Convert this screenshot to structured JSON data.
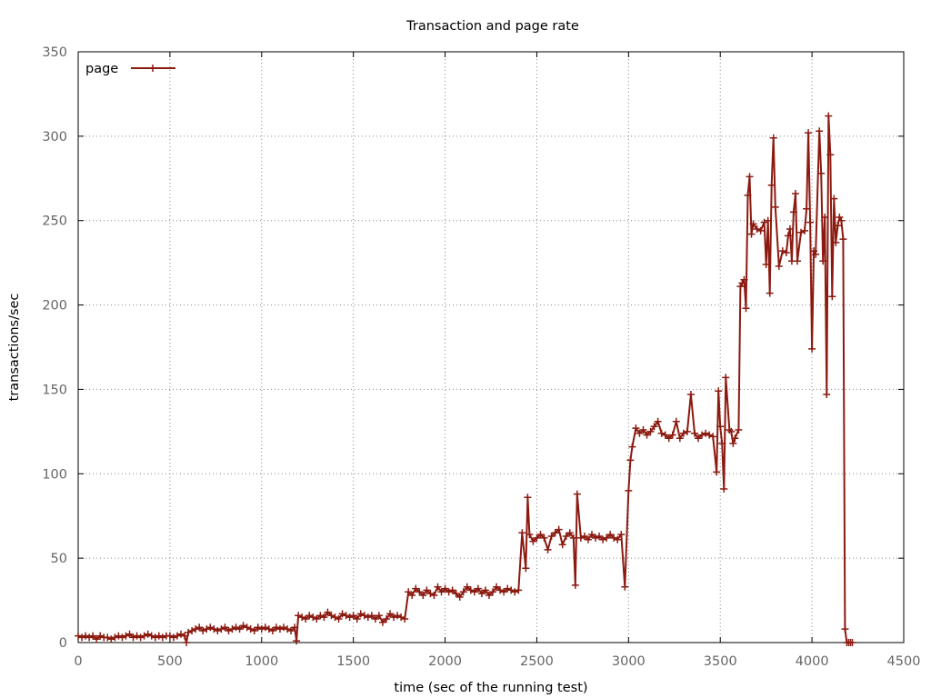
{
  "chart_data": {
    "type": "line",
    "title": "Transaction and page rate",
    "xlabel": "time (sec of the running test)",
    "ylabel": "transactions/sec",
    "xlim": [
      0,
      4500
    ],
    "ylim": [
      0,
      350
    ],
    "xticks": [
      0,
      500,
      1000,
      1500,
      2000,
      2500,
      3000,
      3500,
      4000,
      4500
    ],
    "yticks": [
      0,
      50,
      100,
      150,
      200,
      250,
      300,
      350
    ],
    "grid": true,
    "legend_position": "top-left",
    "color": "#8b1a10",
    "marker": "plus",
    "series": [
      {
        "name": "page",
        "points": [
          [
            0,
            4
          ],
          [
            20,
            3
          ],
          [
            40,
            4
          ],
          [
            60,
            3
          ],
          [
            80,
            4
          ],
          [
            100,
            2
          ],
          [
            120,
            4
          ],
          [
            140,
            3
          ],
          [
            160,
            3
          ],
          [
            180,
            2
          ],
          [
            200,
            3
          ],
          [
            220,
            4
          ],
          [
            240,
            3
          ],
          [
            260,
            4
          ],
          [
            280,
            5
          ],
          [
            300,
            3
          ],
          [
            320,
            4
          ],
          [
            340,
            3
          ],
          [
            360,
            4
          ],
          [
            380,
            5
          ],
          [
            400,
            4
          ],
          [
            420,
            3
          ],
          [
            440,
            4
          ],
          [
            460,
            3
          ],
          [
            480,
            4
          ],
          [
            500,
            4
          ],
          [
            520,
            3
          ],
          [
            540,
            4
          ],
          [
            560,
            5
          ],
          [
            580,
            4
          ],
          [
            590,
            0
          ],
          [
            600,
            6
          ],
          [
            620,
            7
          ],
          [
            640,
            8
          ],
          [
            660,
            9
          ],
          [
            680,
            7
          ],
          [
            700,
            8
          ],
          [
            720,
            9
          ],
          [
            740,
            8
          ],
          [
            760,
            7
          ],
          [
            780,
            8
          ],
          [
            800,
            9
          ],
          [
            820,
            7
          ],
          [
            840,
            8
          ],
          [
            860,
            9
          ],
          [
            880,
            8
          ],
          [
            900,
            10
          ],
          [
            920,
            9
          ],
          [
            940,
            8
          ],
          [
            960,
            7
          ],
          [
            980,
            9
          ],
          [
            1000,
            8
          ],
          [
            1020,
            9
          ],
          [
            1040,
            8
          ],
          [
            1060,
            7
          ],
          [
            1080,
            9
          ],
          [
            1100,
            8
          ],
          [
            1120,
            9
          ],
          [
            1140,
            8
          ],
          [
            1160,
            7
          ],
          [
            1180,
            9
          ],
          [
            1190,
            1
          ],
          [
            1200,
            16
          ],
          [
            1220,
            15
          ],
          [
            1240,
            14
          ],
          [
            1260,
            16
          ],
          [
            1280,
            15
          ],
          [
            1300,
            14
          ],
          [
            1320,
            16
          ],
          [
            1340,
            15
          ],
          [
            1360,
            18
          ],
          [
            1380,
            16
          ],
          [
            1400,
            15
          ],
          [
            1420,
            14
          ],
          [
            1440,
            17
          ],
          [
            1460,
            16
          ],
          [
            1480,
            15
          ],
          [
            1500,
            16
          ],
          [
            1520,
            14
          ],
          [
            1540,
            17
          ],
          [
            1560,
            16
          ],
          [
            1580,
            15
          ],
          [
            1600,
            16
          ],
          [
            1620,
            14
          ],
          [
            1640,
            16
          ],
          [
            1660,
            12
          ],
          [
            1680,
            14
          ],
          [
            1700,
            17
          ],
          [
            1720,
            15
          ],
          [
            1740,
            16
          ],
          [
            1760,
            15
          ],
          [
            1780,
            14
          ],
          [
            1800,
            30
          ],
          [
            1820,
            28
          ],
          [
            1840,
            32
          ],
          [
            1860,
            30
          ],
          [
            1880,
            28
          ],
          [
            1900,
            31
          ],
          [
            1920,
            29
          ],
          [
            1940,
            28
          ],
          [
            1960,
            33
          ],
          [
            1980,
            30
          ],
          [
            2000,
            32
          ],
          [
            2020,
            30
          ],
          [
            2040,
            31
          ],
          [
            2060,
            29
          ],
          [
            2080,
            27
          ],
          [
            2100,
            30
          ],
          [
            2120,
            33
          ],
          [
            2140,
            31
          ],
          [
            2160,
            30
          ],
          [
            2180,
            32
          ],
          [
            2200,
            29
          ],
          [
            2220,
            31
          ],
          [
            2240,
            28
          ],
          [
            2260,
            30
          ],
          [
            2280,
            33
          ],
          [
            2300,
            31
          ],
          [
            2320,
            30
          ],
          [
            2340,
            32
          ],
          [
            2360,
            31
          ],
          [
            2380,
            30
          ],
          [
            2400,
            31
          ],
          [
            2420,
            65
          ],
          [
            2440,
            44
          ],
          [
            2450,
            86
          ],
          [
            2460,
            64
          ],
          [
            2480,
            60
          ],
          [
            2500,
            62
          ],
          [
            2520,
            64
          ],
          [
            2540,
            62
          ],
          [
            2560,
            55
          ],
          [
            2580,
            63
          ],
          [
            2600,
            65
          ],
          [
            2620,
            67
          ],
          [
            2640,
            58
          ],
          [
            2660,
            63
          ],
          [
            2680,
            65
          ],
          [
            2700,
            62
          ],
          [
            2710,
            34
          ],
          [
            2720,
            88
          ],
          [
            2740,
            62
          ],
          [
            2760,
            63
          ],
          [
            2780,
            61
          ],
          [
            2800,
            64
          ],
          [
            2820,
            62
          ],
          [
            2840,
            63
          ],
          [
            2860,
            61
          ],
          [
            2880,
            62
          ],
          [
            2900,
            64
          ],
          [
            2920,
            62
          ],
          [
            2940,
            61
          ],
          [
            2960,
            64
          ],
          [
            2980,
            33
          ],
          [
            3000,
            90
          ],
          [
            3010,
            108
          ],
          [
            3020,
            116
          ],
          [
            3040,
            127
          ],
          [
            3060,
            124
          ],
          [
            3080,
            126
          ],
          [
            3100,
            123
          ],
          [
            3120,
            125
          ],
          [
            3140,
            128
          ],
          [
            3160,
            131
          ],
          [
            3180,
            124
          ],
          [
            3200,
            123
          ],
          [
            3220,
            121
          ],
          [
            3240,
            123
          ],
          [
            3260,
            131
          ],
          [
            3280,
            121
          ],
          [
            3300,
            124
          ],
          [
            3320,
            125
          ],
          [
            3340,
            147
          ],
          [
            3360,
            124
          ],
          [
            3380,
            121
          ],
          [
            3400,
            123
          ],
          [
            3420,
            124
          ],
          [
            3440,
            123
          ],
          [
            3460,
            122
          ],
          [
            3480,
            101
          ],
          [
            3490,
            149
          ],
          [
            3500,
            128
          ],
          [
            3510,
            118
          ],
          [
            3520,
            91
          ],
          [
            3530,
            157
          ],
          [
            3550,
            126
          ],
          [
            3560,
            125
          ],
          [
            3570,
            118
          ],
          [
            3580,
            121
          ],
          [
            3600,
            126
          ],
          [
            3610,
            211
          ],
          [
            3620,
            213
          ],
          [
            3630,
            215
          ],
          [
            3640,
            198
          ],
          [
            3650,
            265
          ],
          [
            3660,
            276
          ],
          [
            3670,
            242
          ],
          [
            3680,
            248
          ],
          [
            3700,
            245
          ],
          [
            3720,
            244
          ],
          [
            3740,
            249
          ],
          [
            3750,
            224
          ],
          [
            3760,
            250
          ],
          [
            3770,
            207
          ],
          [
            3780,
            271
          ],
          [
            3790,
            299
          ],
          [
            3800,
            258
          ],
          [
            3820,
            223
          ],
          [
            3840,
            232
          ],
          [
            3860,
            231
          ],
          [
            3870,
            241
          ],
          [
            3880,
            245
          ],
          [
            3890,
            226
          ],
          [
            3900,
            255
          ],
          [
            3910,
            266
          ],
          [
            3920,
            226
          ],
          [
            3940,
            243
          ],
          [
            3960,
            244
          ],
          [
            3970,
            257
          ],
          [
            3980,
            302
          ],
          [
            3990,
            249
          ],
          [
            4000,
            174
          ],
          [
            4010,
            232
          ],
          [
            4020,
            230
          ],
          [
            4040,
            303
          ],
          [
            4050,
            278
          ],
          [
            4060,
            226
          ],
          [
            4070,
            252
          ],
          [
            4080,
            147
          ],
          [
            4090,
            312
          ],
          [
            4100,
            289
          ],
          [
            4110,
            205
          ],
          [
            4120,
            263
          ],
          [
            4130,
            237
          ],
          [
            4140,
            247
          ],
          [
            4150,
            252
          ],
          [
            4160,
            250
          ],
          [
            4170,
            239
          ],
          [
            4180,
            8
          ],
          [
            4190,
            0
          ],
          [
            4200,
            0
          ],
          [
            4210,
            0
          ],
          [
            4220,
            0
          ]
        ]
      }
    ]
  }
}
